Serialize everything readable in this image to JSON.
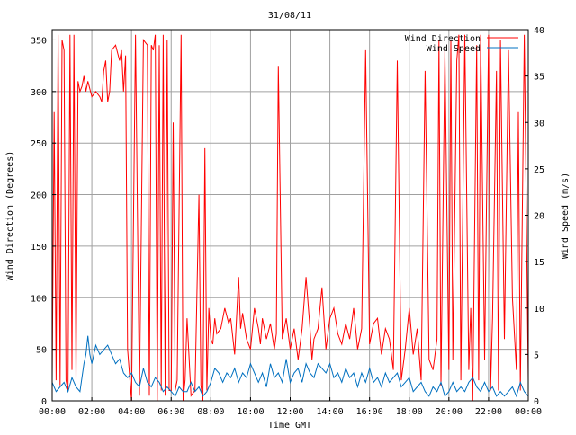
{
  "chart_data": {
    "type": "line",
    "title": "31/08/11",
    "xlabel": "Time GMT",
    "ylabel_left": "Wind Direction (Degrees)",
    "ylabel_right": "Wind Speed (m/s)",
    "xlim": [
      0,
      24
    ],
    "ylim_left": [
      0,
      360
    ],
    "ylim_right": [
      0,
      40
    ],
    "x_tick_labels": [
      "00:00",
      "02:00",
      "04:00",
      "06:00",
      "08:00",
      "10:00",
      "12:00",
      "14:00",
      "16:00",
      "18:00",
      "20:00",
      "22:00",
      "00:00"
    ],
    "y_left_ticks": [
      0,
      50,
      100,
      150,
      200,
      250,
      300,
      350
    ],
    "y_right_ticks": [
      0,
      5,
      10,
      15,
      20,
      25,
      30,
      35,
      40
    ],
    "grid": true,
    "legend_placement": "top-right",
    "series": [
      {
        "name": "Wind Direction",
        "axis": "left",
        "color": "#ff0000",
        "x": [
          0.0,
          0.1,
          0.2,
          0.3,
          0.4,
          0.5,
          0.6,
          0.7,
          0.8,
          0.9,
          1.0,
          1.1,
          1.2,
          1.3,
          1.4,
          1.5,
          1.6,
          1.7,
          1.8,
          2.0,
          2.2,
          2.4,
          2.5,
          2.6,
          2.7,
          2.8,
          2.9,
          3.0,
          3.2,
          3.4,
          3.5,
          3.6,
          3.7,
          3.8,
          4.0,
          4.2,
          4.4,
          4.6,
          4.8,
          4.9,
          5.0,
          5.1,
          5.2,
          5.3,
          5.4,
          5.5,
          5.6,
          5.7,
          5.8,
          5.9,
          6.0,
          6.1,
          6.2,
          6.3,
          6.5,
          6.6,
          6.7,
          6.8,
          7.0,
          7.2,
          7.4,
          7.5,
          7.6,
          7.7,
          7.8,
          7.9,
          8.0,
          8.1,
          8.2,
          8.3,
          8.5,
          8.7,
          8.9,
          9.0,
          9.2,
          9.4,
          9.5,
          9.6,
          9.8,
          10.0,
          10.2,
          10.4,
          10.5,
          10.6,
          10.8,
          11.0,
          11.2,
          11.3,
          11.4,
          11.6,
          11.8,
          12.0,
          12.2,
          12.4,
          12.5,
          12.6,
          12.8,
          13.0,
          13.1,
          13.2,
          13.4,
          13.6,
          13.8,
          14.0,
          14.2,
          14.4,
          14.6,
          14.8,
          15.0,
          15.2,
          15.4,
          15.6,
          15.8,
          16.0,
          16.2,
          16.4,
          16.6,
          16.8,
          17.0,
          17.2,
          17.4,
          17.6,
          17.8,
          18.0,
          18.2,
          18.4,
          18.6,
          18.8,
          19.0,
          19.2,
          19.4,
          19.5,
          19.6,
          19.8,
          20.0,
          20.1,
          20.2,
          20.4,
          20.5,
          20.6,
          20.8,
          21.0,
          21.1,
          21.2,
          21.4,
          21.5,
          21.6,
          21.8,
          22.0,
          22.1,
          22.2,
          22.4,
          22.5,
          22.6,
          22.8,
          23.0,
          23.2,
          23.4,
          23.5,
          23.6,
          23.8,
          24.0
        ],
        "values": [
          20,
          280,
          20,
          355,
          15,
          350,
          340,
          20,
          10,
          355,
          30,
          355,
          20,
          310,
          300,
          305,
          315,
          300,
          310,
          295,
          300,
          295,
          290,
          320,
          330,
          290,
          300,
          340,
          345,
          330,
          340,
          300,
          335,
          50,
          0,
          355,
          5,
          350,
          345,
          5,
          345,
          340,
          355,
          0,
          345,
          10,
          355,
          5,
          350,
          10,
          10,
          270,
          10,
          20,
          355,
          0,
          20,
          80,
          5,
          10,
          200,
          15,
          0,
          245,
          10,
          90,
          60,
          55,
          80,
          65,
          70,
          90,
          75,
          80,
          45,
          120,
          70,
          85,
          60,
          50,
          90,
          70,
          55,
          80,
          60,
          75,
          50,
          65,
          325,
          60,
          80,
          50,
          70,
          40,
          55,
          70,
          120,
          70,
          40,
          60,
          70,
          110,
          50,
          80,
          90,
          65,
          55,
          75,
          60,
          90,
          50,
          70,
          340,
          55,
          75,
          80,
          45,
          70,
          60,
          30,
          330,
          20,
          50,
          90,
          45,
          70,
          20,
          320,
          40,
          30,
          60,
          350,
          15,
          340,
          30,
          350,
          40,
          330,
          355,
          20,
          355,
          30,
          90,
          0,
          345,
          20,
          355,
          40,
          355,
          10,
          80,
          320,
          10,
          350,
          60,
          340,
          100,
          30,
          280,
          10,
          355,
          20
        ]
      },
      {
        "name": "Wind Speed",
        "axis": "right",
        "color": "#0070c0",
        "x": [
          0.0,
          0.2,
          0.4,
          0.6,
          0.8,
          1.0,
          1.2,
          1.4,
          1.6,
          1.7,
          1.8,
          1.9,
          2.0,
          2.2,
          2.4,
          2.6,
          2.8,
          3.0,
          3.2,
          3.4,
          3.6,
          3.8,
          4.0,
          4.2,
          4.4,
          4.6,
          4.8,
          5.0,
          5.2,
          5.4,
          5.6,
          5.8,
          6.0,
          6.2,
          6.4,
          6.6,
          6.8,
          7.0,
          7.2,
          7.4,
          7.6,
          7.8,
          8.0,
          8.2,
          8.4,
          8.6,
          8.8,
          9.0,
          9.2,
          9.4,
          9.6,
          9.8,
          10.0,
          10.2,
          10.4,
          10.6,
          10.8,
          11.0,
          11.2,
          11.4,
          11.6,
          11.8,
          12.0,
          12.2,
          12.4,
          12.6,
          12.8,
          13.0,
          13.2,
          13.4,
          13.6,
          13.8,
          14.0,
          14.2,
          14.4,
          14.6,
          14.8,
          15.0,
          15.2,
          15.4,
          15.6,
          15.8,
          16.0,
          16.2,
          16.4,
          16.6,
          16.8,
          17.0,
          17.2,
          17.4,
          17.6,
          17.8,
          18.0,
          18.2,
          18.4,
          18.6,
          18.8,
          19.0,
          19.2,
          19.4,
          19.6,
          19.8,
          20.0,
          20.2,
          20.4,
          20.6,
          20.8,
          21.0,
          21.2,
          21.4,
          21.6,
          21.8,
          22.0,
          22.2,
          22.4,
          22.6,
          22.8,
          23.0,
          23.2,
          23.4,
          23.6,
          23.8,
          24.0
        ],
        "values": [
          2,
          1,
          1.5,
          2,
          1,
          2.5,
          1.5,
          1,
          4,
          5,
          7,
          5,
          4,
          6,
          5,
          5.5,
          6,
          5,
          4,
          4.5,
          3,
          2.5,
          3,
          2,
          1.5,
          3.5,
          2,
          1.5,
          2.5,
          2,
          1,
          1.5,
          1,
          0.5,
          1.5,
          1,
          1,
          2,
          1,
          1.5,
          0.5,
          1,
          2,
          3.5,
          3,
          2,
          3,
          2.5,
          3.5,
          2,
          3,
          2.5,
          4,
          3,
          2,
          3,
          1.5,
          4,
          2.5,
          3,
          2,
          4.5,
          2,
          3,
          3.5,
          2,
          4,
          3,
          2.5,
          4,
          3.5,
          3,
          4,
          2.5,
          3,
          2,
          3.5,
          2.5,
          3,
          1.5,
          3,
          2,
          3.5,
          2,
          2.5,
          1.5,
          3,
          2,
          2.5,
          3,
          1.5,
          2,
          2.5,
          1,
          1.5,
          2,
          1,
          0.5,
          1.5,
          1,
          2,
          0.5,
          1,
          2,
          1,
          1.5,
          1,
          2,
          2.5,
          1.5,
          1,
          2,
          1,
          1.5,
          0.5,
          1,
          0.5,
          1,
          1.5,
          0.5,
          2,
          1,
          0.5
        ]
      }
    ]
  }
}
